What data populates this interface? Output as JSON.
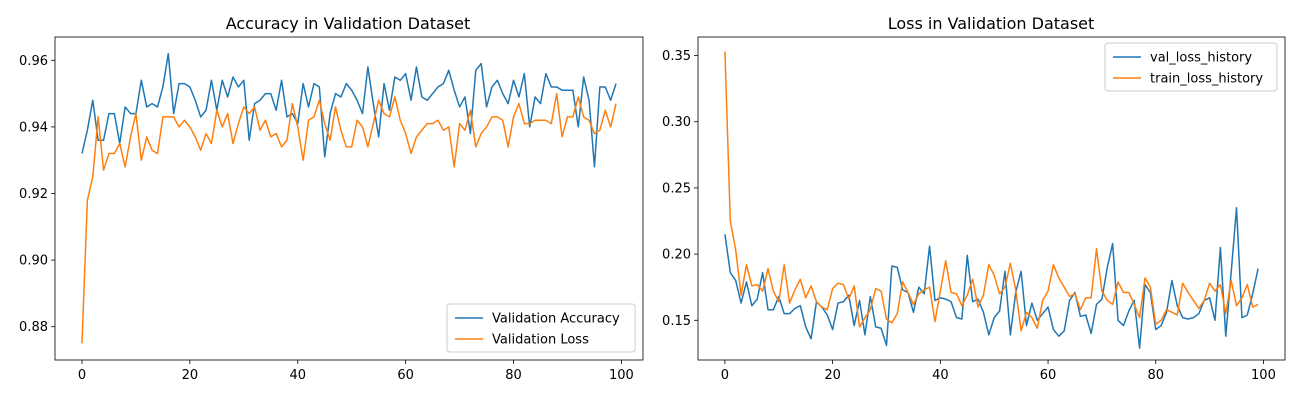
{
  "colors": {
    "blue": "#1f77b4",
    "orange": "#ff7f0e"
  },
  "chart_data": [
    {
      "type": "line",
      "title": "Accuracy in Validation Dataset",
      "xlabel": "",
      "ylabel": "",
      "xlim": [
        -5,
        104
      ],
      "ylim": [
        0.87,
        0.967
      ],
      "xticks": [
        0,
        20,
        40,
        60,
        80,
        100
      ],
      "yticks": [
        0.88,
        0.9,
        0.92,
        0.94,
        0.96
      ],
      "ytick_labels": [
        "0.88",
        "0.90",
        "0.92",
        "0.94",
        "0.96"
      ],
      "grid": false,
      "legend_position": "lower-right",
      "series": [
        {
          "name": "Validation Accuracy",
          "color": "#1f77b4",
          "values": [
            0.932,
            0.939,
            0.948,
            0.936,
            0.936,
            0.944,
            0.944,
            0.935,
            0.946,
            0.944,
            0.944,
            0.954,
            0.946,
            0.947,
            0.946,
            0.952,
            0.962,
            0.944,
            0.953,
            0.953,
            0.952,
            0.948,
            0.943,
            0.945,
            0.954,
            0.945,
            0.954,
            0.949,
            0.955,
            0.952,
            0.954,
            0.936,
            0.947,
            0.948,
            0.95,
            0.95,
            0.945,
            0.954,
            0.943,
            0.944,
            0.941,
            0.953,
            0.946,
            0.953,
            0.952,
            0.931,
            0.944,
            0.95,
            0.949,
            0.953,
            0.951,
            0.948,
            0.944,
            0.958,
            0.947,
            0.937,
            0.953,
            0.945,
            0.955,
            0.954,
            0.956,
            0.948,
            0.958,
            0.949,
            0.948,
            0.95,
            0.952,
            0.953,
            0.957,
            0.951,
            0.946,
            0.949,
            0.938,
            0.957,
            0.959,
            0.946,
            0.952,
            0.954,
            0.95,
            0.947,
            0.954,
            0.949,
            0.956,
            0.94,
            0.949,
            0.947,
            0.956,
            0.952,
            0.952,
            0.951,
            0.951,
            0.951,
            0.94,
            0.955,
            0.948,
            0.928,
            0.952,
            0.952,
            0.948,
            0.953
          ]
        },
        {
          "name": "Validation Loss",
          "color": "#ff7f0e",
          "values": [
            0.875,
            0.918,
            0.925,
            0.943,
            0.927,
            0.932,
            0.932,
            0.935,
            0.928,
            0.937,
            0.944,
            0.93,
            0.937,
            0.933,
            0.932,
            0.943,
            0.943,
            0.943,
            0.94,
            0.942,
            0.94,
            0.937,
            0.933,
            0.938,
            0.935,
            0.945,
            0.94,
            0.944,
            0.935,
            0.941,
            0.946,
            0.944,
            0.946,
            0.939,
            0.942,
            0.937,
            0.938,
            0.934,
            0.936,
            0.947,
            0.94,
            0.93,
            0.942,
            0.943,
            0.948,
            0.941,
            0.936,
            0.946,
            0.939,
            0.934,
            0.934,
            0.942,
            0.94,
            0.934,
            0.941,
            0.948,
            0.944,
            0.943,
            0.949,
            0.942,
            0.938,
            0.932,
            0.937,
            0.939,
            0.941,
            0.941,
            0.942,
            0.939,
            0.94,
            0.928,
            0.941,
            0.939,
            0.945,
            0.934,
            0.938,
            0.94,
            0.943,
            0.943,
            0.942,
            0.934,
            0.943,
            0.947,
            0.941,
            0.941,
            0.942,
            0.942,
            0.942,
            0.941,
            0.95,
            0.937,
            0.943,
            0.943,
            0.949,
            0.943,
            0.942,
            0.938,
            0.939,
            0.945,
            0.94,
            0.947
          ]
        }
      ]
    },
    {
      "type": "line",
      "title": "Loss in Validation Dataset",
      "xlabel": "",
      "ylabel": "",
      "xlim": [
        -5,
        104
      ],
      "ylim": [
        0.12,
        0.364
      ],
      "xticks": [
        0,
        20,
        40,
        60,
        80,
        100
      ],
      "yticks": [
        0.15,
        0.2,
        0.25,
        0.3,
        0.35
      ],
      "ytick_labels": [
        "0.15",
        "0.20",
        "0.25",
        "0.30",
        "0.35"
      ],
      "grid": false,
      "legend_position": "upper-right",
      "series": [
        {
          "name": "val_loss_history",
          "color": "#1f77b4",
          "values": [
            0.215,
            0.186,
            0.18,
            0.163,
            0.179,
            0.161,
            0.166,
            0.186,
            0.158,
            0.158,
            0.168,
            0.155,
            0.155,
            0.159,
            0.161,
            0.145,
            0.136,
            0.164,
            0.16,
            0.154,
            0.143,
            0.163,
            0.164,
            0.169,
            0.146,
            0.165,
            0.139,
            0.168,
            0.145,
            0.144,
            0.131,
            0.191,
            0.19,
            0.173,
            0.171,
            0.156,
            0.175,
            0.17,
            0.206,
            0.165,
            0.167,
            0.166,
            0.164,
            0.152,
            0.151,
            0.199,
            0.164,
            0.166,
            0.156,
            0.139,
            0.152,
            0.157,
            0.187,
            0.139,
            0.171,
            0.187,
            0.146,
            0.163,
            0.15,
            0.155,
            0.16,
            0.143,
            0.138,
            0.142,
            0.165,
            0.171,
            0.153,
            0.154,
            0.14,
            0.162,
            0.166,
            0.19,
            0.208,
            0.15,
            0.146,
            0.157,
            0.165,
            0.129,
            0.177,
            0.171,
            0.143,
            0.146,
            0.156,
            0.18,
            0.161,
            0.152,
            0.151,
            0.152,
            0.155,
            0.165,
            0.167,
            0.15,
            0.205,
            0.138,
            0.186,
            0.235,
            0.152,
            0.154,
            0.17,
            0.189
          ]
        },
        {
          "name": "train_loss_history",
          "color": "#ff7f0e",
          "values": [
            0.353,
            0.225,
            0.203,
            0.169,
            0.192,
            0.176,
            0.177,
            0.172,
            0.189,
            0.172,
            0.164,
            0.192,
            0.163,
            0.173,
            0.181,
            0.167,
            0.176,
            0.164,
            0.16,
            0.158,
            0.174,
            0.178,
            0.177,
            0.166,
            0.176,
            0.145,
            0.152,
            0.158,
            0.174,
            0.172,
            0.151,
            0.148,
            0.155,
            0.179,
            0.171,
            0.162,
            0.17,
            0.173,
            0.175,
            0.149,
            0.172,
            0.195,
            0.171,
            0.17,
            0.161,
            0.169,
            0.181,
            0.16,
            0.169,
            0.192,
            0.184,
            0.17,
            0.175,
            0.193,
            0.173,
            0.142,
            0.156,
            0.152,
            0.144,
            0.165,
            0.172,
            0.192,
            0.182,
            0.175,
            0.168,
            0.17,
            0.158,
            0.167,
            0.167,
            0.204,
            0.172,
            0.165,
            0.162,
            0.179,
            0.171,
            0.171,
            0.162,
            0.152,
            0.182,
            0.175,
            0.147,
            0.15,
            0.158,
            0.156,
            0.154,
            0.178,
            0.171,
            0.165,
            0.159,
            0.165,
            0.178,
            0.172,
            0.177,
            0.155,
            0.18,
            0.161,
            0.167,
            0.177,
            0.16,
            0.162
          ]
        }
      ]
    }
  ]
}
